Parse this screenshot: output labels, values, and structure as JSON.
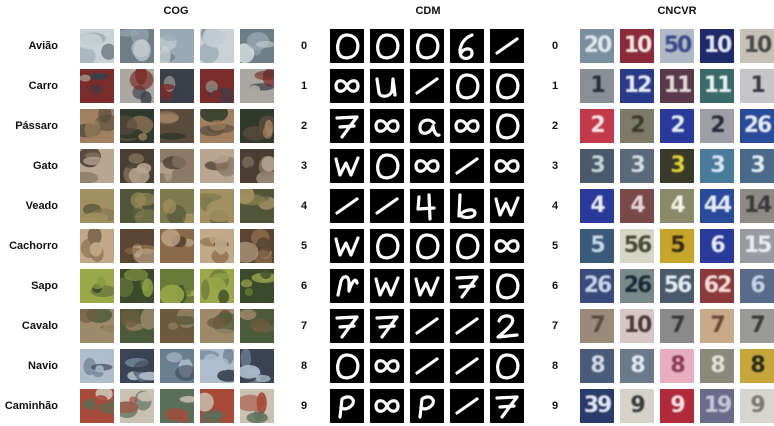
{
  "panels": {
    "cog": "COG",
    "cdm": "CDM",
    "cncvr": "CNCVR"
  },
  "classes": [
    "Avião",
    "Carro",
    "Pássaro",
    "Gato",
    "Veado",
    "Cachorro",
    "Sapo",
    "Cavalo",
    "Navio",
    "Caminhão"
  ],
  "digits": [
    "0",
    "1",
    "2",
    "3",
    "4",
    "5",
    "6",
    "7",
    "8",
    "9"
  ],
  "colors": {
    "background": "#ffffff",
    "label_text": "#111111",
    "mnist_background": "#000000",
    "mnist_stroke": "#ffffff"
  },
  "cog_palettes": [
    [
      "#9aa9b4",
      "#c9d1d6",
      "#6f7d86"
    ],
    [
      "#3a3f49",
      "#7a2d2a",
      "#a9a7a0"
    ],
    [
      "#5a4c3c",
      "#a08060",
      "#2f3a2c"
    ],
    [
      "#8a7a66",
      "#b8a690",
      "#4a3e34"
    ],
    [
      "#7e7a4e",
      "#a39060",
      "#51553a"
    ],
    [
      "#8a6a4a",
      "#c0a888",
      "#5a4632"
    ],
    [
      "#6a7a3a",
      "#9aa84a",
      "#3a4a2a"
    ],
    [
      "#6f5a3e",
      "#9c8a6a",
      "#4a5a3a"
    ],
    [
      "#6a7e92",
      "#aebccc",
      "#3a4452"
    ],
    [
      "#5a6e5a",
      "#a84a3a",
      "#c9c2b2"
    ]
  ],
  "cdm_glyphs": [
    [
      "0",
      "0",
      "0",
      "6",
      "1"
    ],
    [
      "8",
      "u",
      "1",
      "0",
      "0"
    ],
    [
      "7",
      "8",
      "a",
      "8",
      "0"
    ],
    [
      "w",
      "0",
      "8",
      "1",
      "8"
    ],
    [
      "1",
      "1",
      "4",
      "b",
      "w"
    ],
    [
      "w",
      "0",
      "0",
      "0",
      "8"
    ],
    [
      "n",
      "w",
      "w",
      "7",
      "0"
    ],
    [
      "7",
      "7",
      "1",
      "1",
      "2"
    ],
    [
      "0",
      "8",
      "1",
      "1",
      "0"
    ],
    [
      "p",
      "8",
      "p",
      "1",
      "7"
    ]
  ],
  "cncvr_tiles": [
    [
      {
        "t": "20",
        "bg": "#7a8e9e",
        "fg": "#dfe6ec"
      },
      {
        "t": "10",
        "bg": "#8a2a3a",
        "fg": "#f2e6e6"
      },
      {
        "t": "50",
        "bg": "#b0b8c6",
        "fg": "#3a4a8a"
      },
      {
        "t": "10",
        "bg": "#1e2a6a",
        "fg": "#e6e6ee"
      },
      {
        "t": "10",
        "bg": "#c6c0b6",
        "fg": "#4a4a4a"
      }
    ],
    [
      {
        "t": "1",
        "bg": "#8a8e96",
        "fg": "#2a2e3a"
      },
      {
        "t": "12",
        "bg": "#2a3a8a",
        "fg": "#eaeaf2"
      },
      {
        "t": "11",
        "bg": "#5a3a4a",
        "fg": "#e2dada"
      },
      {
        "t": "11",
        "bg": "#3a6a6a",
        "fg": "#eaf2f2"
      },
      {
        "t": "1",
        "bg": "#c6c6ca",
        "fg": "#3a3a4a"
      }
    ],
    [
      {
        "t": "2",
        "bg": "#c23a4a",
        "fg": "#f2e6ea"
      },
      {
        "t": "2",
        "bg": "#7e7a6a",
        "fg": "#3a3a2a"
      },
      {
        "t": "2",
        "bg": "#2a3a9a",
        "fg": "#e6eaf2"
      },
      {
        "t": "2",
        "bg": "#9e9ea6",
        "fg": "#2a2a3a"
      },
      {
        "t": "26",
        "bg": "#2a4a9a",
        "fg": "#e6eaf2"
      }
    ],
    [
      {
        "t": "3",
        "bg": "#4a5a6a",
        "fg": "#c6d2da"
      },
      {
        "t": "3",
        "bg": "#5a6a7a",
        "fg": "#d2dae2"
      },
      {
        "t": "3",
        "bg": "#3a3a2a",
        "fg": "#e2d23a"
      },
      {
        "t": "3",
        "bg": "#4a7a9a",
        "fg": "#d6e6f2"
      },
      {
        "t": "3",
        "bg": "#4a6a8a",
        "fg": "#e2eaf2"
      }
    ],
    [
      {
        "t": "4",
        "bg": "#2a3a9a",
        "fg": "#eaeaf2"
      },
      {
        "t": "4",
        "bg": "#7a4a4a",
        "fg": "#e6d6d6"
      },
      {
        "t": "4",
        "bg": "#8a8a6a",
        "fg": "#f2f2e6"
      },
      {
        "t": "44",
        "bg": "#2a4a9a",
        "fg": "#e6eaf2"
      },
      {
        "t": "14",
        "bg": "#8e8a86",
        "fg": "#3a3a3a"
      }
    ],
    [
      {
        "t": "5",
        "bg": "#3a5a7a",
        "fg": "#c6d6e6"
      },
      {
        "t": "56",
        "bg": "#d6d6c6",
        "fg": "#4a4a3a"
      },
      {
        "t": "5",
        "bg": "#c6a62a",
        "fg": "#3a2a1a"
      },
      {
        "t": "6",
        "bg": "#2a3a9a",
        "fg": "#e6eaf2"
      },
      {
        "t": "15",
        "bg": "#9a9aa2",
        "fg": "#eaeaf2"
      }
    ],
    [
      {
        "t": "26",
        "bg": "#3a4a7a",
        "fg": "#c6d2e6"
      },
      {
        "t": "26",
        "bg": "#7a8a8a",
        "fg": "#1a2a3a"
      },
      {
        "t": "56",
        "bg": "#4a5a6a",
        "fg": "#e2eaf2"
      },
      {
        "t": "62",
        "bg": "#8a3a3a",
        "fg": "#f2dada"
      },
      {
        "t": "6",
        "bg": "#5a6a8a",
        "fg": "#c6d2e6"
      }
    ],
    [
      {
        "t": "7",
        "bg": "#9a8a7a",
        "fg": "#5a4a3a"
      },
      {
        "t": "10",
        "bg": "#d6c6c6",
        "fg": "#4a3a3a"
      },
      {
        "t": "7",
        "bg": "#8a8a8a",
        "fg": "#3a3a3a"
      },
      {
        "t": "7",
        "bg": "#c6aa8a",
        "fg": "#6a4a3a"
      },
      {
        "t": "7",
        "bg": "#9a9a96",
        "fg": "#3a3a36"
      }
    ],
    [
      {
        "t": "8",
        "bg": "#4a5a7a",
        "fg": "#d2dae6"
      },
      {
        "t": "8",
        "bg": "#6a7a8a",
        "fg": "#e2eaf2"
      },
      {
        "t": "8",
        "bg": "#e6aebe",
        "fg": "#8a3a5a"
      },
      {
        "t": "8",
        "bg": "#8a8a7a",
        "fg": "#e2e2d6"
      },
      {
        "t": "8",
        "bg": "#c6a63a",
        "fg": "#2a2a1a"
      }
    ],
    [
      {
        "t": "39",
        "bg": "#2a3a6a",
        "fg": "#e2e6f2"
      },
      {
        "t": "9",
        "bg": "#d6d2ca",
        "fg": "#3a3a3a"
      },
      {
        "t": "9",
        "bg": "#b02a3a",
        "fg": "#f2e2e6"
      },
      {
        "t": "19",
        "bg": "#6a6a8a",
        "fg": "#c6c6d6"
      },
      {
        "t": "9",
        "bg": "#d6d6ce",
        "fg": "#7a7a72"
      }
    ]
  ]
}
